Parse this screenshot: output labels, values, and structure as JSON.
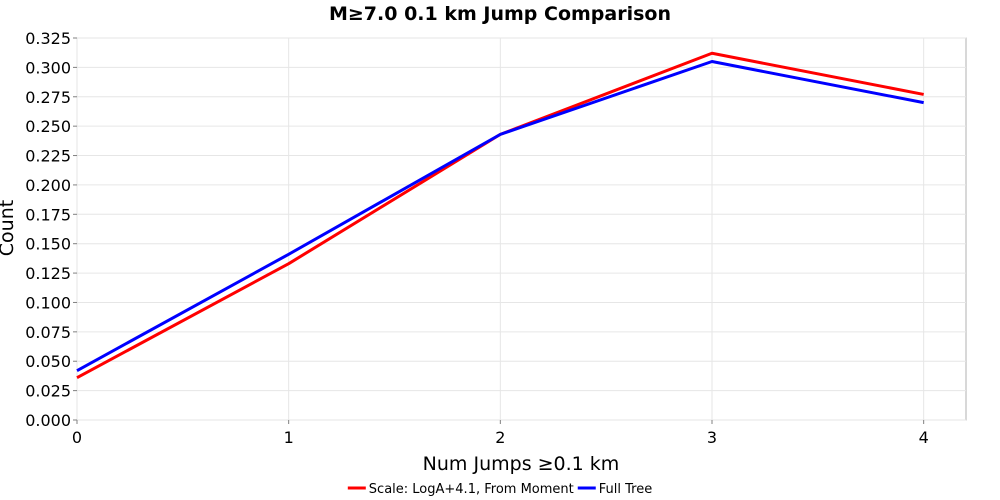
{
  "chart_data": {
    "type": "line",
    "title": "M≥7.0 0.1 km Jump Comparison",
    "xlabel": "Num Jumps ≥0.1 km",
    "ylabel": "Count",
    "xlim": [
      0,
      4.2
    ],
    "ylim": [
      0,
      0.325
    ],
    "x_ticks": [
      0,
      1,
      2,
      3,
      4
    ],
    "y_ticks": [
      0.0,
      0.025,
      0.05,
      0.075,
      0.1,
      0.125,
      0.15,
      0.175,
      0.2,
      0.225,
      0.25,
      0.275,
      0.3,
      0.325
    ],
    "x_tick_labels": [
      "0",
      "1",
      "2",
      "3",
      "4"
    ],
    "y_tick_labels": [
      "0.000",
      "0.025",
      "0.050",
      "0.075",
      "0.100",
      "0.125",
      "0.150",
      "0.175",
      "0.200",
      "0.225",
      "0.250",
      "0.275",
      "0.300",
      "0.325"
    ],
    "grid": true,
    "legend_position": "bottom",
    "x": [
      0,
      1,
      2,
      3,
      4
    ],
    "series": [
      {
        "name": "Scale: LogA+4.1, From Moment",
        "color": "#ff0000",
        "values": [
          0.036,
          0.133,
          0.243,
          0.312,
          0.277
        ]
      },
      {
        "name": "Full Tree",
        "color": "#0000ff",
        "values": [
          0.042,
          0.141,
          0.243,
          0.305,
          0.27
        ]
      }
    ]
  }
}
